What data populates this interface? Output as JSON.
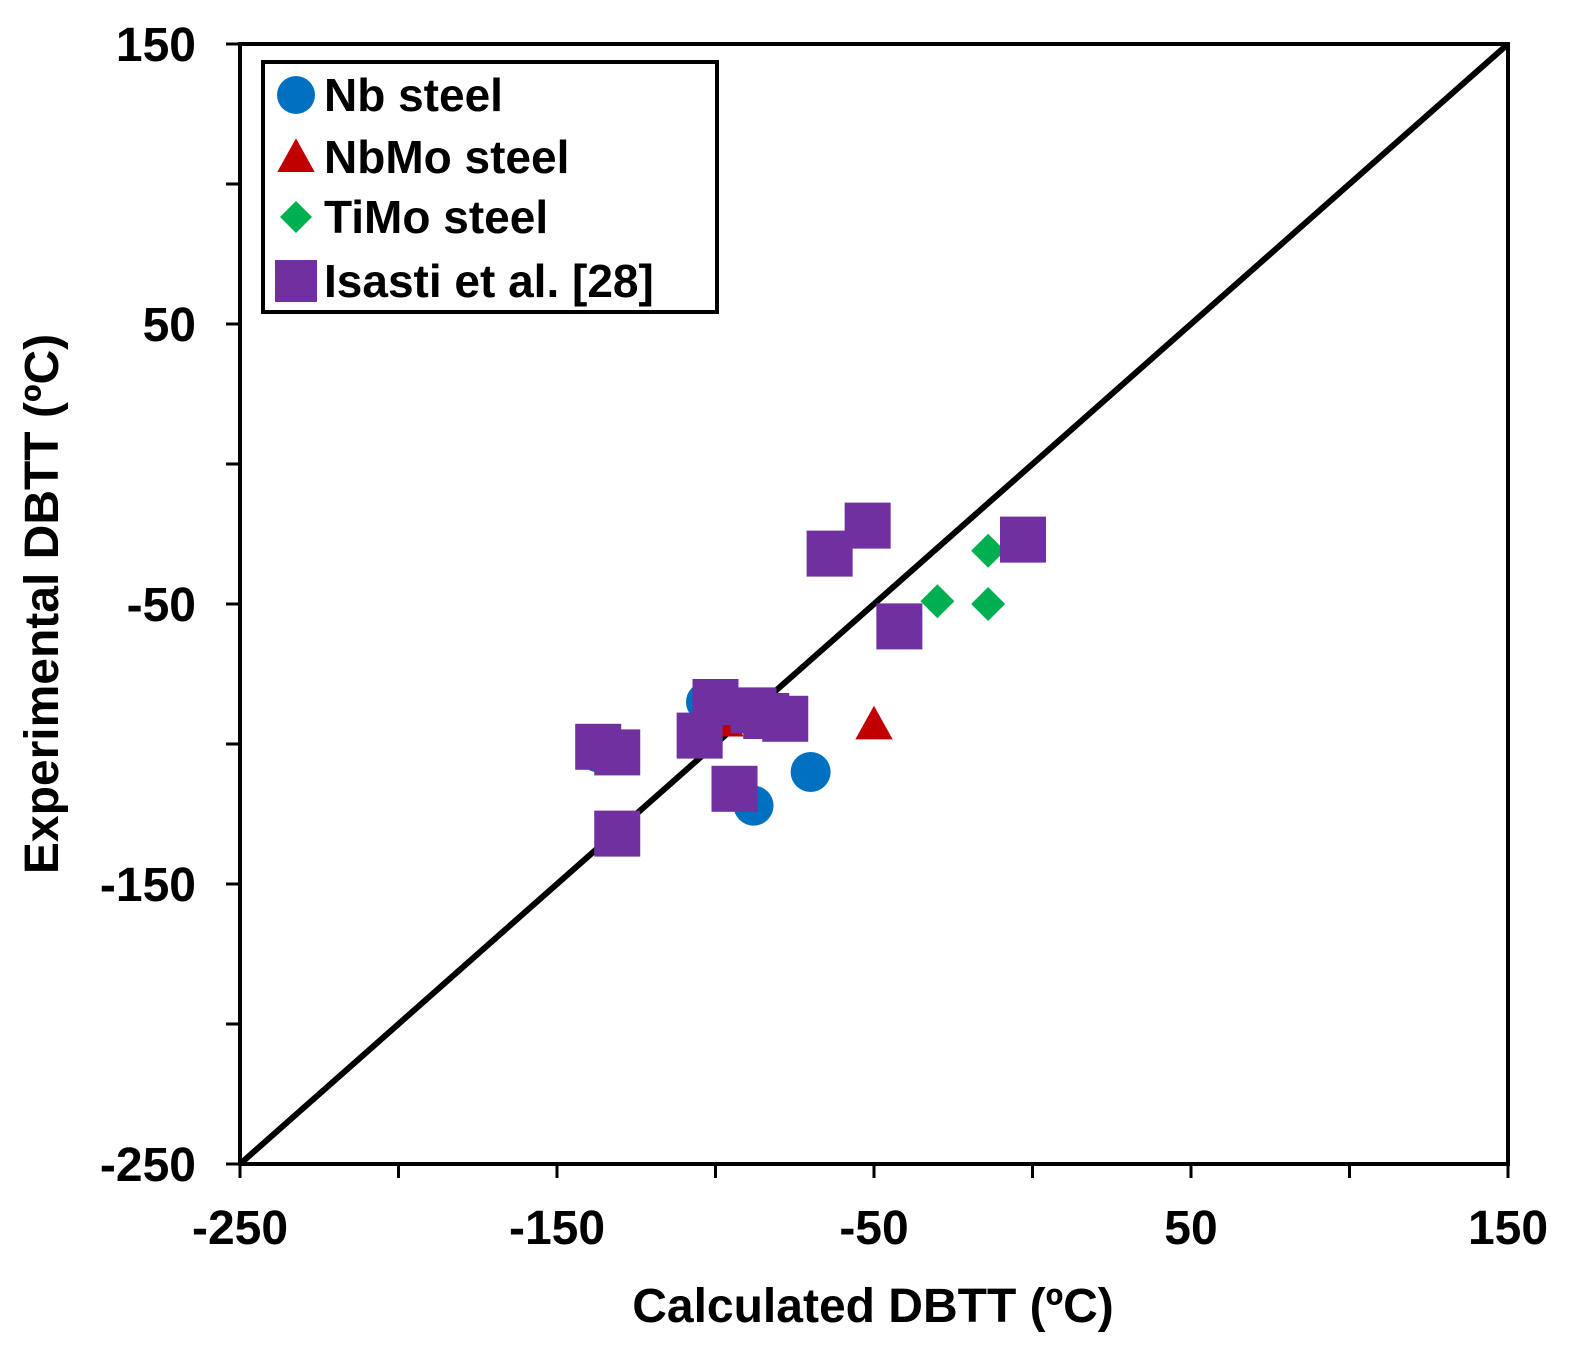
{
  "chart_data": {
    "type": "scatter",
    "xlabel": "Calculated DBTT (ºC)",
    "ylabel": "Experimental DBTT (ºC)",
    "xlim": [
      -250,
      150
    ],
    "ylim": [
      -250,
      150
    ],
    "x_ticks": [
      -250,
      -150,
      -50,
      50,
      150
    ],
    "y_ticks": [
      -250,
      -150,
      -50,
      50,
      150
    ],
    "x_tick_labels": [
      "-250",
      "-150",
      "-50",
      "50",
      "150"
    ],
    "y_tick_labels": [
      "-250",
      "-150",
      "-50",
      "50",
      "150"
    ],
    "minor_tick_step": 50,
    "grid": false,
    "legend_position": "top-left",
    "reference_line": {
      "label": "1:1 line",
      "from": [
        -250,
        -250
      ],
      "to": [
        150,
        150
      ],
      "color": "#000000"
    },
    "series": [
      {
        "name": "Nb steel",
        "marker": "circle",
        "color": "#0070C0",
        "points": [
          [
            -137,
            -103
          ],
          [
            -103,
            -85
          ],
          [
            -88,
            -122
          ],
          [
            -70,
            -110
          ],
          [
            -97,
            -88
          ]
        ]
      },
      {
        "name": "NbMo steel",
        "marker": "triangle",
        "color": "#C00000",
        "points": [
          [
            -50,
            -93
          ],
          [
            -97,
            -92
          ]
        ]
      },
      {
        "name": "TiMo steel",
        "marker": "diamond",
        "color": "#00B050",
        "points": [
          [
            -30,
            -49
          ],
          [
            -14,
            -50
          ],
          [
            -14,
            -31
          ]
        ]
      },
      {
        "name": "Isasti et al. [28]",
        "marker": "square",
        "color": "#7030A0",
        "points": [
          [
            -52,
            -22
          ],
          [
            -64,
            -32
          ],
          [
            -3,
            -27
          ],
          [
            -42,
            -58
          ],
          [
            -100,
            -85
          ],
          [
            -88,
            -88
          ],
          [
            -84,
            -90
          ],
          [
            -78,
            -91
          ],
          [
            -105,
            -97
          ],
          [
            -137,
            -101
          ],
          [
            -131,
            -103
          ],
          [
            -94,
            -116
          ],
          [
            -131,
            -132
          ]
        ]
      }
    ]
  }
}
